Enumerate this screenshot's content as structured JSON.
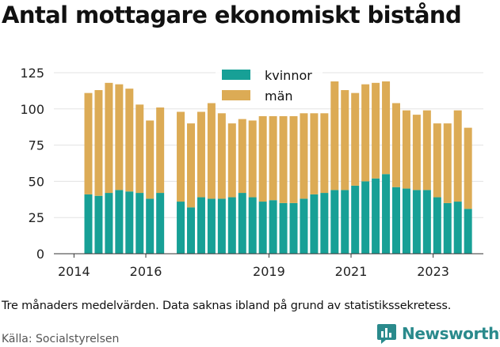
{
  "title": "Antal mottagare ekonomiskt bistånd",
  "note": "Tre månaders medelvärden. Data saknas ibland på grund av statistikssekretess.",
  "source": "Källa: Socialstyrelsen",
  "brand": {
    "name": "Newsworthy",
    "icon": "newsworthy-logo-icon",
    "color": "#2a8a8c"
  },
  "chart_data": {
    "type": "bar",
    "stacked": true,
    "grid": "horizontal",
    "legend_position": "top-center",
    "ylim": [
      0,
      125
    ],
    "yticks": [
      0,
      25,
      50,
      75,
      100,
      125
    ],
    "xticks": [
      "2014",
      "2016",
      "2019",
      "2021",
      "2023"
    ],
    "xlabel": "",
    "ylabel": "",
    "x": [
      "2014Q2",
      "2014Q3",
      "2014Q4",
      "2015Q1",
      "2015Q2",
      "2015Q3",
      "2015Q4",
      "2016Q1",
      "2016Q2",
      "2016Q3",
      "2016Q4",
      "2017Q1",
      "2017Q2",
      "2017Q3",
      "2017Q4",
      "2018Q1",
      "2018Q2",
      "2018Q3",
      "2018Q4",
      "2019Q1",
      "2019Q2",
      "2019Q3",
      "2019Q4",
      "2020Q1",
      "2020Q2",
      "2020Q3",
      "2020Q4",
      "2021Q1",
      "2021Q2",
      "2021Q3",
      "2021Q4",
      "2022Q1",
      "2022Q2",
      "2022Q3",
      "2022Q4",
      "2023Q1",
      "2023Q2",
      "2023Q3",
      "2023Q4"
    ],
    "series": [
      {
        "name": "kvinnor",
        "color": "#17a096",
        "values": [
          41,
          40,
          42,
          44,
          43,
          42,
          38,
          42,
          null,
          36,
          32,
          39,
          38,
          38,
          39,
          42,
          39,
          36,
          37,
          35,
          35,
          38,
          41,
          42,
          44,
          44,
          47,
          50,
          52,
          55,
          46,
          45,
          44,
          44,
          39,
          35,
          36,
          31,
          null
        ]
      },
      {
        "name": "män",
        "color": "#dcab55",
        "values": [
          70,
          73,
          76,
          73,
          71,
          61,
          54,
          59,
          null,
          62,
          58,
          59,
          66,
          59,
          51,
          51,
          53,
          59,
          58,
          60,
          60,
          59,
          56,
          55,
          75,
          69,
          64,
          67,
          66,
          64,
          58,
          54,
          52,
          55,
          51,
          55,
          63,
          56,
          null
        ]
      }
    ]
  }
}
